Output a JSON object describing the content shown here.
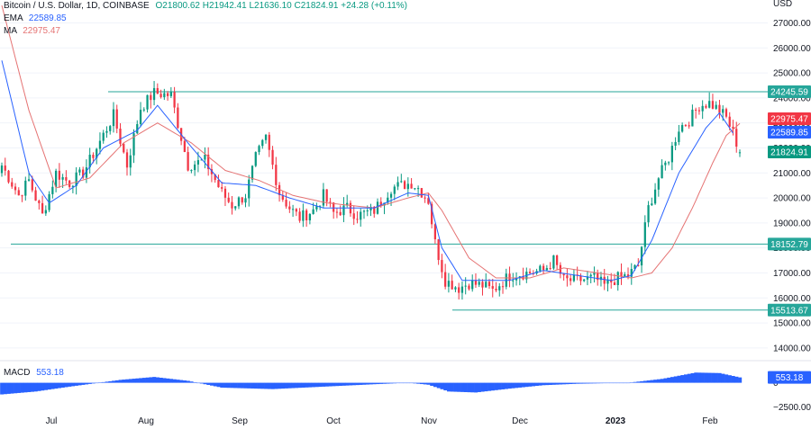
{
  "header": {
    "symbol": "Bitcoin / U.S. Dollar, 1D, COINBASE",
    "ohlc": "O21800.62  H21942.41  L21636.10  C21824.91  +24.28 (+0.11%)"
  },
  "indicators": {
    "ema_label": "EMA",
    "ema_value": "22589.85",
    "ma_label": "MA",
    "ma_value": "22975.47",
    "macd_label": "MACD",
    "macd_value": "553.18"
  },
  "currency": "USD",
  "colors": {
    "up": "#089981",
    "down": "#f23645",
    "ema": "#2962ff",
    "ma": "#e57373",
    "hline": "#26a69a",
    "macd": "#2962ff",
    "axis_text": "#131722"
  },
  "chart_data": {
    "type": "candlestick",
    "symbol": "Bitcoin / U.S. Dollar, 1D, COINBASE",
    "price_axis": {
      "ticks": [
        "27000.00",
        "26000.00",
        "25000.00",
        "24000.00",
        "23000.00",
        "22000.00",
        "21000.00",
        "20000.00",
        "19000.00",
        "18000.00",
        "17000.00",
        "16000.00",
        "15000.00",
        "14000.00"
      ],
      "range": [
        13600,
        27700
      ]
    },
    "macd_axis": {
      "ticks": [
        "0",
        "−2500.00"
      ],
      "range": [
        -3000,
        2000
      ]
    },
    "x_labels": [
      "Jul",
      "Aug",
      "Sep",
      "Oct",
      "Nov",
      "Dec",
      "2023",
      "Feb"
    ],
    "price_labels": [
      {
        "text": "24245.59",
        "value": 24245.59,
        "color": "#26a69a"
      },
      {
        "text": "22975.47",
        "value": 22975.47,
        "color": "#f23645"
      },
      {
        "text": "22589.85",
        "value": 22589.85,
        "color": "#2962ff"
      },
      {
        "text": "21824.91",
        "value": 21824.91,
        "color": "#089981"
      },
      {
        "text": "18152.79",
        "value": 18152.79,
        "color": "#26a69a"
      },
      {
        "text": "15513.67",
        "value": 15513.67,
        "color": "#26a69a"
      }
    ],
    "macd_label": {
      "text": "553.18",
      "value": 553.18,
      "color": "#2962ff"
    },
    "horizontal_lines": [
      24245.59,
      18152.79,
      15513.67
    ],
    "close_anchors": [
      [
        0,
        21300
      ],
      [
        5,
        20100
      ],
      [
        8,
        20700
      ],
      [
        12,
        19300
      ],
      [
        16,
        21000
      ],
      [
        20,
        20600
      ],
      [
        24,
        21000
      ],
      [
        28,
        22000
      ],
      [
        33,
        23300
      ],
      [
        37,
        21300
      ],
      [
        41,
        23600
      ],
      [
        45,
        24200
      ],
      [
        50,
        24100
      ],
      [
        55,
        21300
      ],
      [
        60,
        21500
      ],
      [
        65,
        20200
      ],
      [
        68,
        19700
      ],
      [
        72,
        20100
      ],
      [
        75,
        21600
      ],
      [
        78,
        22400
      ],
      [
        82,
        20200
      ],
      [
        85,
        19600
      ],
      [
        88,
        19200
      ],
      [
        92,
        19500
      ],
      [
        95,
        20100
      ],
      [
        98,
        19400
      ],
      [
        102,
        19600
      ],
      [
        105,
        19300
      ],
      [
        110,
        19500
      ],
      [
        115,
        20400
      ],
      [
        118,
        20500
      ],
      [
        121,
        20600
      ],
      [
        123,
        20400
      ],
      [
        126,
        19900
      ],
      [
        128,
        18200
      ],
      [
        131,
        16700
      ],
      [
        135,
        16400
      ],
      [
        138,
        16600
      ],
      [
        142,
        16500
      ],
      [
        145,
        16300
      ],
      [
        150,
        16900
      ],
      [
        155,
        17000
      ],
      [
        160,
        17100
      ],
      [
        163,
        17500
      ],
      [
        166,
        16700
      ],
      [
        170,
        16700
      ],
      [
        175,
        16800
      ],
      [
        178,
        16500
      ],
      [
        182,
        16800
      ],
      [
        185,
        16900
      ],
      [
        188,
        17300
      ],
      [
        191,
        19600
      ],
      [
        194,
        20800
      ],
      [
        197,
        21600
      ],
      [
        200,
        22800
      ],
      [
        203,
        23100
      ],
      [
        206,
        23700
      ],
      [
        209,
        23800
      ],
      [
        212,
        23500
      ],
      [
        214,
        23200
      ],
      [
        216,
        22600
      ],
      [
        218,
        21824.91
      ]
    ],
    "ema_anchors": [
      [
        0,
        25500
      ],
      [
        8,
        21000
      ],
      [
        14,
        19800
      ],
      [
        22,
        20500
      ],
      [
        30,
        22000
      ],
      [
        40,
        22700
      ],
      [
        46,
        23700
      ],
      [
        55,
        22200
      ],
      [
        65,
        20600
      ],
      [
        75,
        20500
      ],
      [
        85,
        20000
      ],
      [
        95,
        19600
      ],
      [
        110,
        19600
      ],
      [
        120,
        20200
      ],
      [
        126,
        20100
      ],
      [
        130,
        18000
      ],
      [
        136,
        16700
      ],
      [
        150,
        16700
      ],
      [
        160,
        17100
      ],
      [
        170,
        16900
      ],
      [
        180,
        16700
      ],
      [
        186,
        16900
      ],
      [
        192,
        18300
      ],
      [
        200,
        21000
      ],
      [
        208,
        22800
      ],
      [
        212,
        23400
      ],
      [
        216,
        22589.85
      ]
    ],
    "ma_anchors": [
      [
        0,
        27700
      ],
      [
        8,
        23500
      ],
      [
        16,
        20400
      ],
      [
        26,
        20800
      ],
      [
        36,
        22200
      ],
      [
        46,
        23000
      ],
      [
        56,
        22200
      ],
      [
        66,
        21100
      ],
      [
        76,
        20700
      ],
      [
        86,
        20100
      ],
      [
        96,
        19800
      ],
      [
        110,
        19600
      ],
      [
        120,
        20000
      ],
      [
        126,
        20200
      ],
      [
        130,
        19500
      ],
      [
        138,
        17600
      ],
      [
        146,
        16800
      ],
      [
        156,
        16800
      ],
      [
        166,
        17200
      ],
      [
        176,
        17000
      ],
      [
        186,
        16800
      ],
      [
        192,
        17000
      ],
      [
        198,
        18000
      ],
      [
        204,
        19600
      ],
      [
        210,
        21400
      ],
      [
        214,
        22500
      ],
      [
        218,
        22975.47
      ]
    ],
    "macd_anchors": [
      [
        0,
        -1200
      ],
      [
        10,
        -900
      ],
      [
        20,
        -400
      ],
      [
        35,
        300
      ],
      [
        45,
        600
      ],
      [
        55,
        200
      ],
      [
        65,
        -500
      ],
      [
        80,
        -650
      ],
      [
        95,
        -400
      ],
      [
        110,
        -150
      ],
      [
        120,
        0
      ],
      [
        126,
        -200
      ],
      [
        132,
        -900
      ],
      [
        140,
        -1000
      ],
      [
        150,
        -600
      ],
      [
        160,
        -250
      ],
      [
        170,
        -100
      ],
      [
        185,
        0
      ],
      [
        195,
        400
      ],
      [
        205,
        1050
      ],
      [
        212,
        1000
      ],
      [
        218,
        553.18
      ]
    ]
  }
}
